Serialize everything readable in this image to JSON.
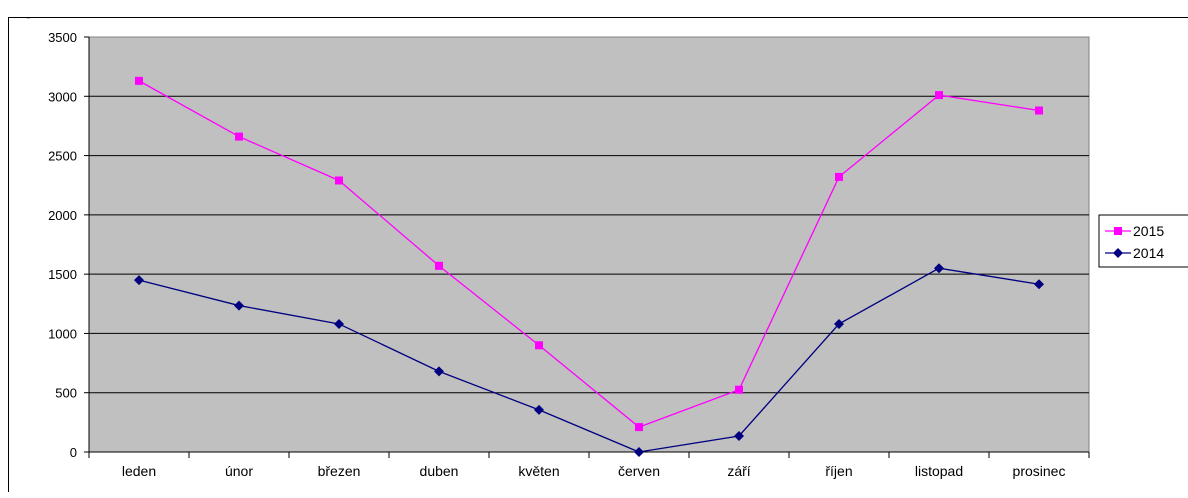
{
  "chart_data": {
    "type": "line",
    "title": "",
    "xlabel": "",
    "ylabel": "",
    "categories": [
      "leden",
      "únor",
      "březen",
      "duben",
      "květen",
      "červen",
      "září",
      "říjen",
      "listopad",
      "prosinec"
    ],
    "ylim": [
      0,
      3500
    ],
    "yticks": [
      0,
      500,
      1000,
      1500,
      2000,
      2500,
      3000,
      3500
    ],
    "grid": true,
    "plot_background": "#c0c0c0",
    "legend_position": "right",
    "series": [
      {
        "name": "2015",
        "color": "#ff00ff",
        "marker": "square",
        "values": [
          3130,
          2660,
          2290,
          1570,
          900,
          210,
          525,
          2320,
          3010,
          2880
        ]
      },
      {
        "name": "2014",
        "color": "#000080",
        "marker": "diamond",
        "values": [
          1450,
          1235,
          1080,
          680,
          355,
          0,
          135,
          1080,
          1550,
          1415
        ]
      }
    ]
  }
}
